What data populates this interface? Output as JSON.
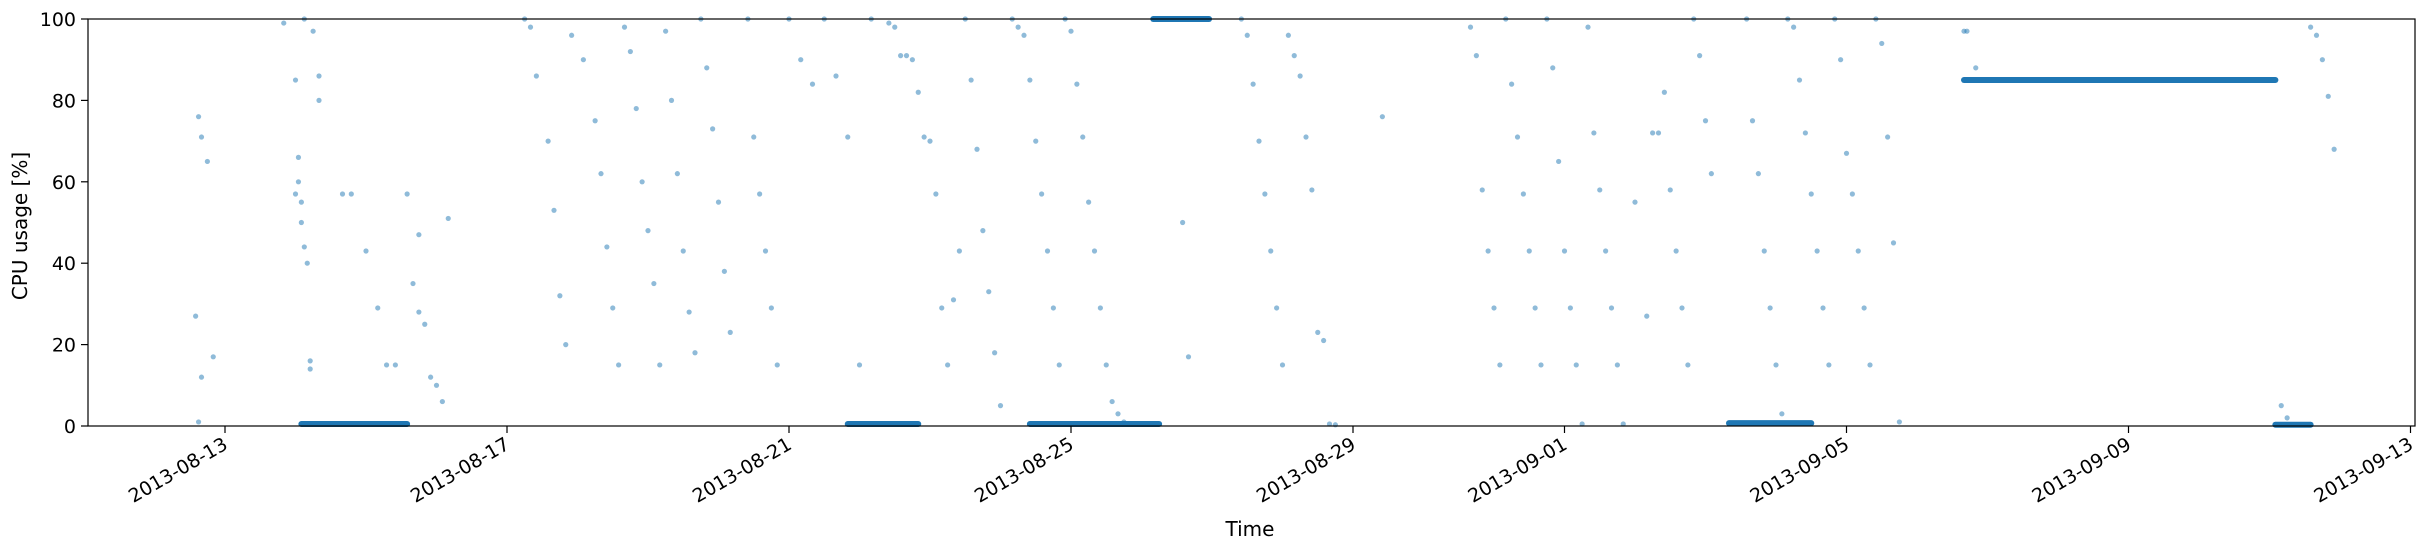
{
  "chart_data": {
    "type": "scatter",
    "title": "",
    "xlabel": "Time",
    "ylabel": "CPU usage [%]",
    "ylim": [
      0,
      100
    ],
    "xlim": [
      "2013-08-12",
      "2013-09-13"
    ],
    "yticks": [
      0,
      20,
      40,
      60,
      80,
      100
    ],
    "xticks": [
      "2013-08-13",
      "2013-08-17",
      "2013-08-21",
      "2013-08-25",
      "2013-08-29",
      "2013-09-01",
      "2013-09-05",
      "2013-09-09",
      "2013-09-13"
    ],
    "grid": false,
    "legend": "none",
    "marker_color": "#1f77b4",
    "series": [
      {
        "segments": [
          {
            "start": "2013-08-14 02:00",
            "end": "2013-08-15 14:00",
            "y": 0.5
          },
          {
            "start": "2013-08-21 20:00",
            "end": "2013-08-22 20:00",
            "y": 0.5
          },
          {
            "start": "2013-08-24 10:00",
            "end": "2013-08-26 06:00",
            "y": 0.5
          },
          {
            "start": "2013-08-26 04:00",
            "end": "2013-08-26 23:00",
            "y": 100
          },
          {
            "start": "2013-09-03 08:00",
            "end": "2013-09-04 12:00",
            "y": 0.7
          },
          {
            "start": "2013-09-06 16:00",
            "end": "2013-09-11 02:00",
            "y": 85
          },
          {
            "start": "2013-09-11 02:00",
            "end": "2013-09-11 14:00",
            "y": 0.3
          }
        ],
        "points": [
          [
            "2013-08-12 15:00",
            76
          ],
          [
            "2013-08-12 16:00",
            71
          ],
          [
            "2013-08-12 18:00",
            65
          ],
          [
            "2013-08-12 14:00",
            27
          ],
          [
            "2013-08-12 20:00",
            17
          ],
          [
            "2013-08-12 16:00",
            12
          ],
          [
            "2013-08-12 15:00",
            1
          ],
          [
            "2013-08-13 20:00",
            99
          ],
          [
            "2013-08-14 00:00",
            85
          ],
          [
            "2013-08-14 01:00",
            66
          ],
          [
            "2013-08-14 01:00",
            60
          ],
          [
            "2013-08-14 00:00",
            57
          ],
          [
            "2013-08-14 02:00",
            55
          ],
          [
            "2013-08-14 02:00",
            50
          ],
          [
            "2013-08-14 03:00",
            44
          ],
          [
            "2013-08-14 04:00",
            40
          ],
          [
            "2013-08-14 05:00",
            16
          ],
          [
            "2013-08-14 05:00",
            14
          ],
          [
            "2013-08-14 06:00",
            97
          ],
          [
            "2013-08-14 03:00",
            100
          ],
          [
            "2013-08-14 08:00",
            86
          ],
          [
            "2013-08-14 08:00",
            80
          ],
          [
            "2013-08-14 16:00",
            57
          ],
          [
            "2013-08-14 19:00",
            57
          ],
          [
            "2013-08-15 00:00",
            43
          ],
          [
            "2013-08-15 04:00",
            29
          ],
          [
            "2013-08-15 07:00",
            15
          ],
          [
            "2013-08-15 10:00",
            15
          ],
          [
            "2013-08-15 14:00",
            57
          ],
          [
            "2013-08-15 16:00",
            35
          ],
          [
            "2013-08-15 18:00",
            28
          ],
          [
            "2013-08-15 20:00",
            25
          ],
          [
            "2013-08-15 22:00",
            12
          ],
          [
            "2013-08-16 00:00",
            10
          ],
          [
            "2013-08-16 02:00",
            6
          ],
          [
            "2013-08-15 18:00",
            47
          ],
          [
            "2013-08-16 04:00",
            51
          ],
          [
            "2013-08-17 06:00",
            100
          ],
          [
            "2013-08-17 08:00",
            98
          ],
          [
            "2013-08-17 10:00",
            86
          ],
          [
            "2013-08-17 14:00",
            70
          ],
          [
            "2013-08-17 16:00",
            53
          ],
          [
            "2013-08-17 18:00",
            32
          ],
          [
            "2013-08-17 20:00",
            20
          ],
          [
            "2013-08-17 22:00",
            96
          ],
          [
            "2013-08-18 02:00",
            90
          ],
          [
            "2013-08-18 06:00",
            75
          ],
          [
            "2013-08-18 08:00",
            62
          ],
          [
            "2013-08-18 10:00",
            44
          ],
          [
            "2013-08-18 12:00",
            29
          ],
          [
            "2013-08-18 14:00",
            15
          ],
          [
            "2013-08-18 16:00",
            98
          ],
          [
            "2013-08-18 18:00",
            92
          ],
          [
            "2013-08-18 20:00",
            78
          ],
          [
            "2013-08-18 22:00",
            60
          ],
          [
            "2013-08-19 00:00",
            48
          ],
          [
            "2013-08-19 02:00",
            35
          ],
          [
            "2013-08-19 04:00",
            15
          ],
          [
            "2013-08-19 06:00",
            97
          ],
          [
            "2013-08-19 08:00",
            80
          ],
          [
            "2013-08-19 10:00",
            62
          ],
          [
            "2013-08-19 12:00",
            43
          ],
          [
            "2013-08-19 14:00",
            28
          ],
          [
            "2013-08-19 16:00",
            18
          ],
          [
            "2013-08-19 18:00",
            100
          ],
          [
            "2013-08-19 20:00",
            88
          ],
          [
            "2013-08-19 22:00",
            73
          ],
          [
            "2013-08-20 00:00",
            55
          ],
          [
            "2013-08-20 02:00",
            38
          ],
          [
            "2013-08-20 04:00",
            23
          ],
          [
            "2013-08-20 10:00",
            100
          ],
          [
            "2013-08-20 12:00",
            71
          ],
          [
            "2013-08-20 14:00",
            57
          ],
          [
            "2013-08-20 16:00",
            43
          ],
          [
            "2013-08-20 18:00",
            29
          ],
          [
            "2013-08-20 20:00",
            15
          ],
          [
            "2013-08-21 00:00",
            100
          ],
          [
            "2013-08-21 04:00",
            90
          ],
          [
            "2013-08-21 08:00",
            84
          ],
          [
            "2013-08-21 12:00",
            100
          ],
          [
            "2013-08-21 16:00",
            86
          ],
          [
            "2013-08-21 20:00",
            71
          ],
          [
            "2013-08-22 00:00",
            15
          ],
          [
            "2013-08-22 04:00",
            100
          ],
          [
            "2013-08-22 10:00",
            99
          ],
          [
            "2013-08-22 12:00",
            98
          ],
          [
            "2013-08-22 14:00",
            91
          ],
          [
            "2013-08-22 16:00",
            91
          ],
          [
            "2013-08-22 18:00",
            90
          ],
          [
            "2013-08-22 20:00",
            82
          ],
          [
            "2013-08-22 22:00",
            71
          ],
          [
            "2013-08-23 00:00",
            70
          ],
          [
            "2013-08-23 02:00",
            57
          ],
          [
            "2013-08-23 04:00",
            29
          ],
          [
            "2013-08-23 06:00",
            15
          ],
          [
            "2013-08-23 08:00",
            31
          ],
          [
            "2013-08-23 10:00",
            43
          ],
          [
            "2013-08-23 12:00",
            100
          ],
          [
            "2013-08-23 14:00",
            85
          ],
          [
            "2013-08-23 16:00",
            68
          ],
          [
            "2013-08-23 18:00",
            48
          ],
          [
            "2013-08-23 20:00",
            33
          ],
          [
            "2013-08-23 22:00",
            18
          ],
          [
            "2013-08-24 00:00",
            5
          ],
          [
            "2013-08-24 04:00",
            100
          ],
          [
            "2013-08-24 06:00",
            98
          ],
          [
            "2013-08-24 08:00",
            96
          ],
          [
            "2013-08-24 10:00",
            85
          ],
          [
            "2013-08-24 12:00",
            70
          ],
          [
            "2013-08-24 14:00",
            57
          ],
          [
            "2013-08-24 16:00",
            43
          ],
          [
            "2013-08-24 18:00",
            29
          ],
          [
            "2013-08-24 20:00",
            15
          ],
          [
            "2013-08-24 22:00",
            100
          ],
          [
            "2013-08-25 00:00",
            97
          ],
          [
            "2013-08-25 02:00",
            84
          ],
          [
            "2013-08-25 04:00",
            71
          ],
          [
            "2013-08-25 06:00",
            55
          ],
          [
            "2013-08-25 08:00",
            43
          ],
          [
            "2013-08-25 10:00",
            29
          ],
          [
            "2013-08-25 12:00",
            15
          ],
          [
            "2013-08-25 14:00",
            6
          ],
          [
            "2013-08-25 16:00",
            3
          ],
          [
            "2013-08-25 18:00",
            1
          ],
          [
            "2013-08-26 14:00",
            50
          ],
          [
            "2013-08-26 16:00",
            17
          ],
          [
            "2013-08-27 10:00",
            100
          ],
          [
            "2013-08-27 12:00",
            96
          ],
          [
            "2013-08-27 14:00",
            84
          ],
          [
            "2013-08-27 16:00",
            70
          ],
          [
            "2013-08-27 18:00",
            57
          ],
          [
            "2013-08-27 20:00",
            43
          ],
          [
            "2013-08-27 22:00",
            29
          ],
          [
            "2013-08-28 00:00",
            15
          ],
          [
            "2013-08-28 02:00",
            96
          ],
          [
            "2013-08-28 04:00",
            91
          ],
          [
            "2013-08-28 06:00",
            86
          ],
          [
            "2013-08-28 08:00",
            71
          ],
          [
            "2013-08-28 10:00",
            58
          ],
          [
            "2013-08-28 12:00",
            23
          ],
          [
            "2013-08-28 14:00",
            21
          ],
          [
            "2013-08-28 16:00",
            0.5
          ],
          [
            "2013-08-28 18:00",
            0.3
          ],
          [
            "2013-08-29 10:00",
            76
          ],
          [
            "2013-08-30 16:00",
            98
          ],
          [
            "2013-08-30 18:00",
            91
          ],
          [
            "2013-08-30 20:00",
            58
          ],
          [
            "2013-08-30 22:00",
            43
          ],
          [
            "2013-08-31 00:00",
            29
          ],
          [
            "2013-08-31 02:00",
            15
          ],
          [
            "2013-08-31 04:00",
            100
          ],
          [
            "2013-08-31 06:00",
            84
          ],
          [
            "2013-08-31 08:00",
            71
          ],
          [
            "2013-08-31 10:00",
            57
          ],
          [
            "2013-08-31 12:00",
            43
          ],
          [
            "2013-08-31 14:00",
            29
          ],
          [
            "2013-08-31 16:00",
            15
          ],
          [
            "2013-08-31 18:00",
            100
          ],
          [
            "2013-08-31 20:00",
            88
          ],
          [
            "2013-08-31 22:00",
            65
          ],
          [
            "2013-09-01 00:00",
            43
          ],
          [
            "2013-09-01 02:00",
            29
          ],
          [
            "2013-09-01 04:00",
            15
          ],
          [
            "2013-09-01 06:00",
            0.5
          ],
          [
            "2013-09-01 08:00",
            98
          ],
          [
            "2013-09-01 10:00",
            72
          ],
          [
            "2013-09-01 12:00",
            58
          ],
          [
            "2013-09-01 14:00",
            43
          ],
          [
            "2013-09-01 16:00",
            29
          ],
          [
            "2013-09-01 18:00",
            15
          ],
          [
            "2013-09-01 20:00",
            0.5
          ],
          [
            "2013-09-02 00:00",
            55
          ],
          [
            "2013-09-02 04:00",
            27
          ],
          [
            "2013-09-02 06:00",
            72
          ],
          [
            "2013-09-02 08:00",
            72
          ],
          [
            "2013-09-02 10:00",
            82
          ],
          [
            "2013-09-02 12:00",
            58
          ],
          [
            "2013-09-02 14:00",
            43
          ],
          [
            "2013-09-02 16:00",
            29
          ],
          [
            "2013-09-02 18:00",
            15
          ],
          [
            "2013-09-02 20:00",
            100
          ],
          [
            "2013-09-02 22:00",
            91
          ],
          [
            "2013-09-03 00:00",
            75
          ],
          [
            "2013-09-03 02:00",
            62
          ],
          [
            "2013-09-03 14:00",
            100
          ],
          [
            "2013-09-03 16:00",
            75
          ],
          [
            "2013-09-03 18:00",
            62
          ],
          [
            "2013-09-03 20:00",
            43
          ],
          [
            "2013-09-03 22:00",
            29
          ],
          [
            "2013-09-04 00:00",
            15
          ],
          [
            "2013-09-04 02:00",
            3
          ],
          [
            "2013-09-04 04:00",
            100
          ],
          [
            "2013-09-04 06:00",
            98
          ],
          [
            "2013-09-04 08:00",
            85
          ],
          [
            "2013-09-04 10:00",
            72
          ],
          [
            "2013-09-04 12:00",
            57
          ],
          [
            "2013-09-04 14:00",
            43
          ],
          [
            "2013-09-04 16:00",
            29
          ],
          [
            "2013-09-04 18:00",
            15
          ],
          [
            "2013-09-04 20:00",
            100
          ],
          [
            "2013-09-04 22:00",
            90
          ],
          [
            "2013-09-05 00:00",
            67
          ],
          [
            "2013-09-05 02:00",
            57
          ],
          [
            "2013-09-05 04:00",
            43
          ],
          [
            "2013-09-05 06:00",
            29
          ],
          [
            "2013-09-05 08:00",
            15
          ],
          [
            "2013-09-05 10:00",
            100
          ],
          [
            "2013-09-05 12:00",
            94
          ],
          [
            "2013-09-05 14:00",
            71
          ],
          [
            "2013-09-05 16:00",
            45
          ],
          [
            "2013-09-05 18:00",
            1
          ],
          [
            "2013-09-06 16:00",
            97
          ],
          [
            "2013-09-06 17:00",
            97
          ],
          [
            "2013-09-06 20:00",
            88
          ],
          [
            "2013-09-11 14:00",
            98
          ],
          [
            "2013-09-11 16:00",
            96
          ],
          [
            "2013-09-11 18:00",
            90
          ],
          [
            "2013-09-11 20:00",
            81
          ],
          [
            "2013-09-11 22:00",
            68
          ],
          [
            "2013-09-11 04:00",
            5
          ],
          [
            "2013-09-11 06:00",
            2
          ]
        ]
      }
    ]
  }
}
